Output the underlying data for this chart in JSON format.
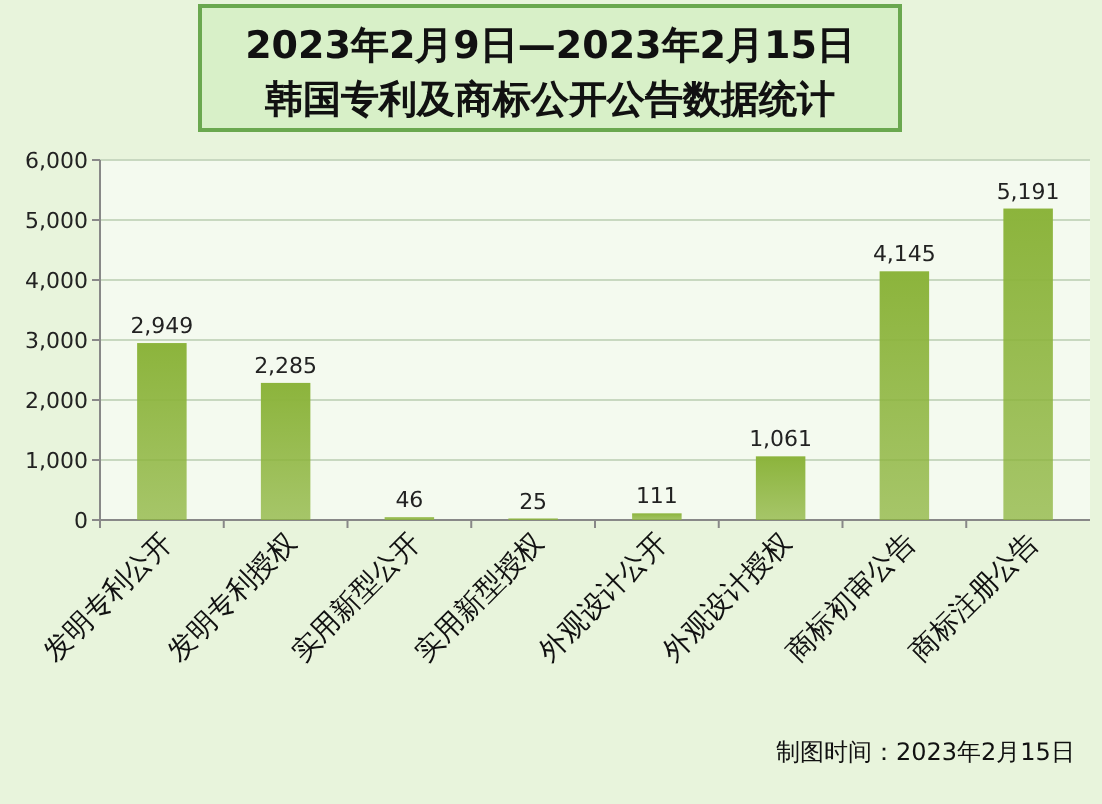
{
  "chart_data": {
    "type": "bar",
    "title": "2023年2月9日—2023年2月15日",
    "subtitle": "韩国专利及商标公开公告数据统计",
    "categories": [
      "发明专利公开",
      "发明专利授权",
      "实用新型公开",
      "实用新型授权",
      "外观设计公开",
      "外观设计授权",
      "商标初审公告",
      "商标注册公告"
    ],
    "values": [
      2949,
      2285,
      46,
      25,
      111,
      1061,
      4145,
      5191
    ],
    "value_labels": [
      "2,949",
      "2,285",
      "46",
      "25",
      "111",
      "1,061",
      "4,145",
      "5,191"
    ],
    "color": "#8cb43c",
    "ylim": [
      0,
      6000
    ],
    "yticks": [
      0,
      {
        "value": 1000,
        "label": "1,000"
      },
      {
        "value": 2000,
        "label": "2,000"
      },
      {
        "value": 3000,
        "label": "3,000"
      },
      {
        "value": 4000,
        "label": "4,000"
      },
      {
        "value": 5000,
        "label": "5,000"
      },
      {
        "value": 6000,
        "label": "6,000"
      }
    ],
    "grid": "y",
    "annotations": [
      "制图时间：2023年2月15日"
    ]
  }
}
